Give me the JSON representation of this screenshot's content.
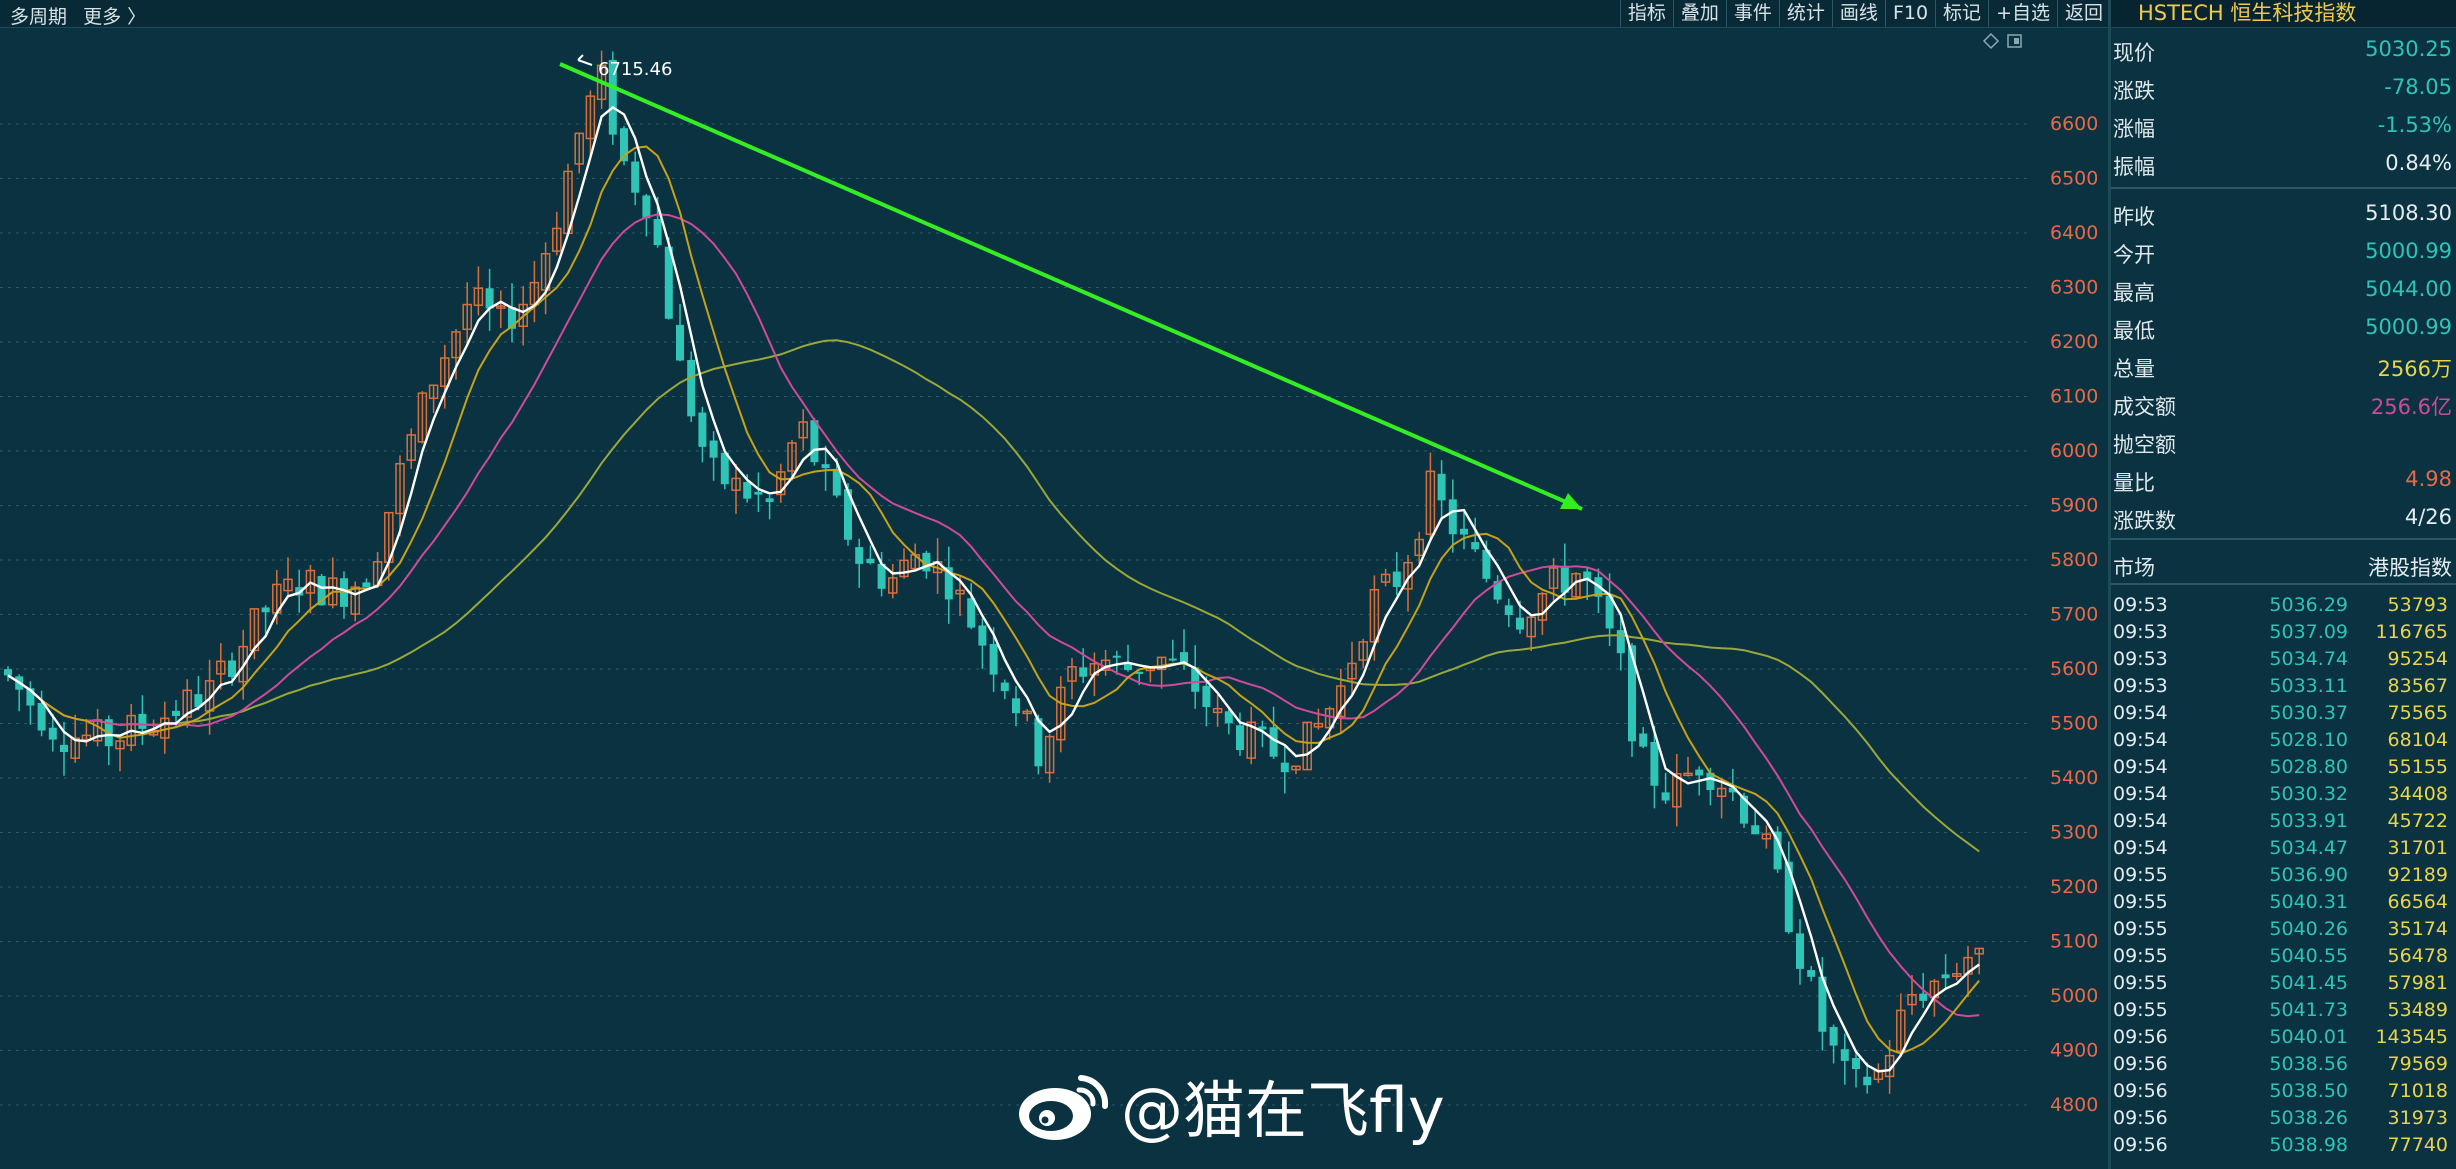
{
  "topbar": {
    "period": "多周期",
    "more": "更多 〉",
    "tools": [
      "指标",
      "叠加",
      "事件",
      "统计",
      "画线",
      "F10",
      "标记",
      "+自选",
      "返回"
    ]
  },
  "chart": {
    "peak_label": "6715.46",
    "y_ticks": [
      "6600",
      "6500",
      "6400",
      "6300",
      "6200",
      "6100",
      "6000",
      "5900",
      "5800",
      "5700",
      "5600",
      "5500",
      "5400",
      "5300",
      "5200",
      "5100",
      "5000",
      "4900",
      "4800"
    ],
    "colors": {
      "up": "#d96f3a",
      "down": "#2ec4b6",
      "ma5": "#ffffff",
      "ma10": "#c6a21a",
      "ma20": "#d04a9a",
      "ma60": "#9aa83a",
      "trend": "#33ee22",
      "axis": "#e8694a"
    }
  },
  "panel": {
    "title": "HSTECH 恒生科技指数",
    "rows": [
      {
        "k": "现价",
        "v": "5030.25",
        "c": "#2ec4b6"
      },
      {
        "k": "涨跌",
        "v": "-78.05",
        "c": "#2ec4b6"
      },
      {
        "k": "涨幅",
        "v": "-1.53%",
        "c": "#2ec4b6"
      },
      {
        "k": "振幅",
        "v": "0.84%",
        "c": "#e4ecef"
      },
      {
        "k": "昨收",
        "v": "5108.30",
        "c": "#e4ecef"
      },
      {
        "k": "今开",
        "v": "5000.99",
        "c": "#2ec4b6"
      },
      {
        "k": "最高",
        "v": "5044.00",
        "c": "#2ec4b6"
      },
      {
        "k": "最低",
        "v": "5000.99",
        "c": "#2ec4b6"
      },
      {
        "k": "总量",
        "v": "2566万",
        "c": "#e8d44d"
      },
      {
        "k": "成交额",
        "v": "256.6亿",
        "c": "#d04a9a"
      },
      {
        "k": "抛空额",
        "v": "",
        "c": "#e4ecef"
      },
      {
        "k": "量比",
        "v": "4.98",
        "c": "#e8694a"
      },
      {
        "k": "涨跌数",
        "v": "4/26",
        "c": "#e4ecef"
      },
      {
        "k": "市场",
        "v": "港股指数",
        "c": "#e4ecef"
      }
    ],
    "ticks": [
      {
        "t": "09:53",
        "p": "5036.29",
        "q": "53793"
      },
      {
        "t": "09:53",
        "p": "5037.09",
        "q": "116765"
      },
      {
        "t": "09:53",
        "p": "5034.74",
        "q": "95254"
      },
      {
        "t": "09:53",
        "p": "5033.11",
        "q": "83567"
      },
      {
        "t": "09:54",
        "p": "5030.37",
        "q": "75565"
      },
      {
        "t": "09:54",
        "p": "5028.10",
        "q": "68104"
      },
      {
        "t": "09:54",
        "p": "5028.80",
        "q": "55155"
      },
      {
        "t": "09:54",
        "p": "5030.32",
        "q": "34408"
      },
      {
        "t": "09:54",
        "p": "5033.91",
        "q": "45722"
      },
      {
        "t": "09:54",
        "p": "5034.47",
        "q": "31701"
      },
      {
        "t": "09:55",
        "p": "5036.90",
        "q": "92189"
      },
      {
        "t": "09:55",
        "p": "5040.31",
        "q": "66564"
      },
      {
        "t": "09:55",
        "p": "5040.26",
        "q": "35174"
      },
      {
        "t": "09:55",
        "p": "5040.55",
        "q": "56478"
      },
      {
        "t": "09:55",
        "p": "5041.45",
        "q": "57981"
      },
      {
        "t": "09:55",
        "p": "5041.73",
        "q": "53489"
      },
      {
        "t": "09:56",
        "p": "5040.01",
        "q": "143545"
      },
      {
        "t": "09:56",
        "p": "5038.56",
        "q": "79569"
      },
      {
        "t": "09:56",
        "p": "5038.50",
        "q": "71018"
      },
      {
        "t": "09:56",
        "p": "5038.26",
        "q": "31973"
      },
      {
        "t": "09:56",
        "p": "5038.98",
        "q": "77740"
      }
    ]
  },
  "watermark": {
    "text": "@猫在飞fly",
    "icon": "weibo-logo-icon"
  }
}
